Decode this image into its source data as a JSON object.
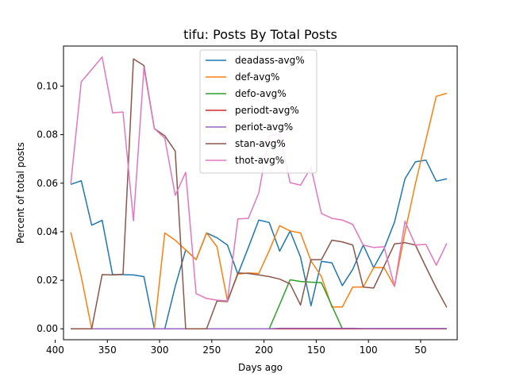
{
  "chart_data": {
    "type": "line",
    "title": "tifu: Posts By Total Posts",
    "xlabel": "Days ago",
    "ylabel": "Percent of total posts",
    "xlim": [
      392,
      15
    ],
    "ylim": [
      -0.0045,
      0.1165
    ],
    "x_inverted": true,
    "xticks": [
      400,
      350,
      300,
      250,
      200,
      150,
      100,
      50
    ],
    "xtick_labels": [
      "400",
      "350",
      "300",
      "250",
      "200",
      "150",
      "100",
      "50"
    ],
    "yticks": [
      0.0,
      0.02,
      0.04,
      0.06,
      0.08,
      0.1
    ],
    "ytick_labels": [
      "0.00",
      "0.02",
      "0.04",
      "0.06",
      "0.08",
      "0.10"
    ],
    "grid": false,
    "legend_position": "top-center",
    "x": [
      385,
      375,
      365,
      355,
      345,
      335,
      325,
      315,
      305,
      295,
      285,
      275,
      265,
      255,
      245,
      235,
      225,
      215,
      205,
      195,
      185,
      175,
      165,
      155,
      145,
      135,
      125,
      115,
      105,
      95,
      85,
      75,
      65,
      55,
      45,
      35,
      25
    ],
    "series": [
      {
        "name": "deadass-avg%",
        "color": "#1f77b4",
        "values": [
          0.0595,
          0.061,
          0.0427,
          0.0447,
          0.0223,
          0.0223,
          0.0222,
          0.0215,
          0.0,
          0.0,
          0.0175,
          0.0325,
          0.0285,
          0.0395,
          0.0375,
          0.0345,
          0.0225,
          0.0335,
          0.0448,
          0.0438,
          0.032,
          0.0403,
          0.0295,
          0.0095,
          0.0278,
          0.0272,
          0.0178,
          0.0245,
          0.0345,
          0.0252,
          0.033,
          0.044,
          0.0618,
          0.0688,
          0.0695,
          0.0608,
          0.0618
        ]
      },
      {
        "name": "def-avg%",
        "color": "#ff7f0e",
        "values": [
          0.0398,
          0.0215,
          0.0,
          0.0,
          0.0,
          0.0,
          0.0,
          0.0,
          0.0,
          0.0395,
          0.0365,
          0.0325,
          0.0285,
          0.0395,
          0.0338,
          0.0115,
          0.0225,
          0.023,
          0.0228,
          0.0322,
          0.0425,
          0.0403,
          0.0395,
          0.028,
          0.0215,
          0.009,
          0.009,
          0.0172,
          0.0172,
          0.0252,
          0.0252,
          0.0175,
          0.0398,
          0.0598,
          0.0778,
          0.0958,
          0.097
        ]
      },
      {
        "name": "defo-avg%",
        "color": "#2ca02c",
        "values": [
          0,
          0,
          0,
          0,
          0,
          0,
          0,
          0,
          0,
          0,
          0,
          0,
          0,
          0,
          0,
          0,
          0,
          0,
          0,
          0,
          0.01,
          0.0202,
          0.0195,
          0.0192,
          0.019,
          0.0095,
          0,
          0,
          0,
          0,
          0,
          0,
          0,
          0,
          0,
          0,
          0
        ]
      },
      {
        "name": "periodt-avg%",
        "color": "#d62728",
        "values": [
          0,
          0,
          0,
          0,
          0,
          0,
          0,
          0,
          0,
          0,
          0,
          0,
          0,
          0,
          0,
          0,
          0,
          0,
          0,
          0,
          0,
          0,
          0,
          0,
          0,
          0,
          0,
          0,
          0,
          0,
          0,
          0,
          0,
          0,
          0,
          0,
          0
        ]
      },
      {
        "name": "periot-avg%",
        "color": "#9467bd",
        "values": [
          0,
          0,
          0,
          0,
          0,
          0,
          0,
          0,
          0,
          0,
          0,
          0,
          0,
          0,
          0,
          0,
          0,
          0,
          0,
          0,
          0.0002,
          0.0002,
          0.0002,
          0.0002,
          0.0002,
          0.0002,
          0.0002,
          0.0002,
          0.0001,
          0.0001,
          0.0001,
          0.0001,
          0.0001,
          0.0001,
          0.0001,
          0.0001,
          0.0001
        ]
      },
      {
        "name": "stan-avg%",
        "color": "#8c564b",
        "values": [
          0.0,
          0.0,
          0.0,
          0.0223,
          0.0222,
          0.0225,
          0.1112,
          0.1085,
          0.0825,
          0.0795,
          0.0732,
          0.0,
          0.0,
          0.0,
          0.0115,
          0.0112,
          0.023,
          0.0228,
          0.0222,
          0.0215,
          0.0205,
          0.0185,
          0.0098,
          0.0285,
          0.0285,
          0.0365,
          0.0358,
          0.0345,
          0.0172,
          0.0168,
          0.0258,
          0.035,
          0.0355,
          0.0345,
          0.0255,
          0.0168,
          0.0088
        ]
      },
      {
        "name": "thot-avg%",
        "color": "#e377c2",
        "values": [
          0.0598,
          0.1018,
          0.1068,
          0.112,
          0.089,
          0.0893,
          0.0445,
          0.1075,
          0.0825,
          0.0785,
          0.055,
          0.0645,
          0.0145,
          0.0125,
          0.0118,
          0.0115,
          0.0453,
          0.0455,
          0.056,
          0.0795,
          0.0802,
          0.0602,
          0.0592,
          0.0665,
          0.0475,
          0.0455,
          0.0448,
          0.043,
          0.0345,
          0.0335,
          0.0338,
          0.0175,
          0.0443,
          0.0345,
          0.0348,
          0.0262,
          0.0352
        ]
      }
    ]
  }
}
